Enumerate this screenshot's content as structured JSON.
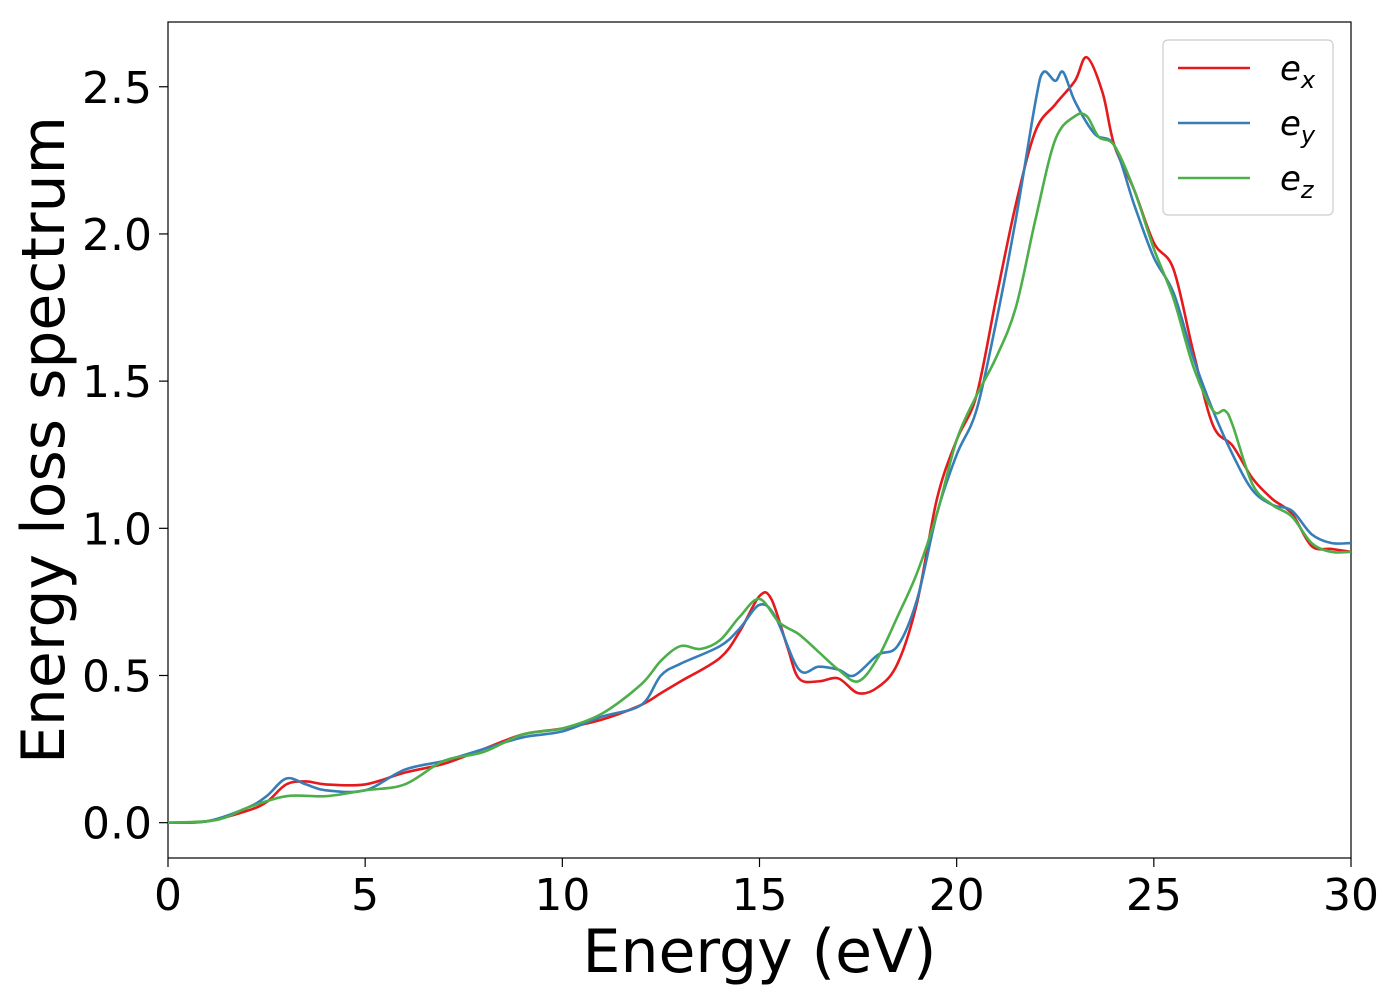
{
  "chart_data": {
    "type": "line",
    "title": "",
    "xlabel": "Energy (eV)",
    "ylabel": "Energy loss spectrum",
    "xlim": [
      0,
      30
    ],
    "ylim": [
      -0.12,
      2.72
    ],
    "xticks": [
      0,
      5,
      10,
      15,
      20,
      25,
      30
    ],
    "xtick_labels": [
      "0",
      "5",
      "10",
      "15",
      "20",
      "25",
      "30"
    ],
    "yticks": [
      0.0,
      0.5,
      1.0,
      1.5,
      2.0,
      2.5
    ],
    "ytick_labels": [
      "0.0",
      "0.5",
      "1.0",
      "1.5",
      "2.0",
      "2.5"
    ],
    "grid": false,
    "legend_position": "top-right",
    "series": [
      {
        "name": "e_x",
        "base": "e",
        "sub": "x",
        "color": "#e41a1c",
        "points": [
          [
            0,
            0
          ],
          [
            1,
            0.005
          ],
          [
            2,
            0.04
          ],
          [
            2.5,
            0.07
          ],
          [
            3,
            0.13
          ],
          [
            3.5,
            0.14
          ],
          [
            4,
            0.13
          ],
          [
            5,
            0.13
          ],
          [
            6,
            0.17
          ],
          [
            7,
            0.2
          ],
          [
            8,
            0.25
          ],
          [
            9,
            0.3
          ],
          [
            10,
            0.32
          ],
          [
            11,
            0.35
          ],
          [
            12,
            0.4
          ],
          [
            12.5,
            0.44
          ],
          [
            13,
            0.48
          ],
          [
            14,
            0.56
          ],
          [
            14.5,
            0.65
          ],
          [
            15,
            0.77
          ],
          [
            15.3,
            0.76
          ],
          [
            15.7,
            0.6
          ],
          [
            16,
            0.49
          ],
          [
            16.5,
            0.48
          ],
          [
            17,
            0.49
          ],
          [
            17.5,
            0.44
          ],
          [
            18,
            0.46
          ],
          [
            18.5,
            0.54
          ],
          [
            19,
            0.75
          ],
          [
            19.5,
            1.1
          ],
          [
            20,
            1.3
          ],
          [
            20.5,
            1.45
          ],
          [
            21,
            1.78
          ],
          [
            21.5,
            2.1
          ],
          [
            22,
            2.35
          ],
          [
            22.5,
            2.44
          ],
          [
            23,
            2.52
          ],
          [
            23.3,
            2.6
          ],
          [
            23.7,
            2.48
          ],
          [
            24,
            2.3
          ],
          [
            24.5,
            2.15
          ],
          [
            25,
            1.97
          ],
          [
            25.5,
            1.88
          ],
          [
            26,
            1.6
          ],
          [
            26.5,
            1.35
          ],
          [
            27,
            1.28
          ],
          [
            27.5,
            1.17
          ],
          [
            28,
            1.1
          ],
          [
            28.5,
            1.05
          ],
          [
            29,
            0.94
          ],
          [
            29.5,
            0.93
          ],
          [
            30,
            0.92
          ]
        ]
      },
      {
        "name": "e_y",
        "base": "e",
        "sub": "y",
        "color": "#377eb8",
        "points": [
          [
            0,
            0
          ],
          [
            1,
            0.005
          ],
          [
            2,
            0.05
          ],
          [
            2.5,
            0.09
          ],
          [
            3,
            0.15
          ],
          [
            3.5,
            0.13
          ],
          [
            4,
            0.11
          ],
          [
            5,
            0.11
          ],
          [
            6,
            0.18
          ],
          [
            7,
            0.21
          ],
          [
            8,
            0.25
          ],
          [
            9,
            0.29
          ],
          [
            10,
            0.31
          ],
          [
            11,
            0.36
          ],
          [
            12,
            0.4
          ],
          [
            12.5,
            0.5
          ],
          [
            13,
            0.54
          ],
          [
            14,
            0.6
          ],
          [
            14.5,
            0.66
          ],
          [
            15,
            0.74
          ],
          [
            15.4,
            0.7
          ],
          [
            16,
            0.52
          ],
          [
            16.5,
            0.53
          ],
          [
            17,
            0.52
          ],
          [
            17.4,
            0.5
          ],
          [
            18,
            0.57
          ],
          [
            18.5,
            0.6
          ],
          [
            19,
            0.76
          ],
          [
            19.5,
            1.05
          ],
          [
            20,
            1.25
          ],
          [
            20.5,
            1.4
          ],
          [
            21,
            1.7
          ],
          [
            21.5,
            2.05
          ],
          [
            22,
            2.45
          ],
          [
            22.2,
            2.55
          ],
          [
            22.5,
            2.52
          ],
          [
            22.7,
            2.55
          ],
          [
            23,
            2.45
          ],
          [
            23.5,
            2.34
          ],
          [
            24,
            2.3
          ],
          [
            24.5,
            2.1
          ],
          [
            25,
            1.92
          ],
          [
            25.5,
            1.8
          ],
          [
            26,
            1.58
          ],
          [
            26.5,
            1.4
          ],
          [
            27,
            1.25
          ],
          [
            27.5,
            1.13
          ],
          [
            28,
            1.08
          ],
          [
            28.5,
            1.06
          ],
          [
            29,
            0.98
          ],
          [
            29.5,
            0.95
          ],
          [
            30,
            0.95
          ]
        ]
      },
      {
        "name": "e_z",
        "base": "e",
        "sub": "z",
        "color": "#4daf4a",
        "points": [
          [
            0,
            0
          ],
          [
            1,
            0.005
          ],
          [
            1.5,
            0.02
          ],
          [
            2,
            0.05
          ],
          [
            3,
            0.09
          ],
          [
            4,
            0.09
          ],
          [
            5,
            0.11
          ],
          [
            6,
            0.13
          ],
          [
            7,
            0.21
          ],
          [
            8,
            0.24
          ],
          [
            9,
            0.3
          ],
          [
            10,
            0.32
          ],
          [
            11,
            0.37
          ],
          [
            12,
            0.47
          ],
          [
            12.5,
            0.55
          ],
          [
            13,
            0.6
          ],
          [
            13.5,
            0.59
          ],
          [
            14,
            0.62
          ],
          [
            14.5,
            0.7
          ],
          [
            15,
            0.76
          ],
          [
            15.5,
            0.68
          ],
          [
            16,
            0.64
          ],
          [
            16.5,
            0.58
          ],
          [
            17,
            0.52
          ],
          [
            17.5,
            0.48
          ],
          [
            18,
            0.56
          ],
          [
            18.5,
            0.7
          ],
          [
            19,
            0.85
          ],
          [
            19.5,
            1.05
          ],
          [
            20,
            1.3
          ],
          [
            20.5,
            1.45
          ],
          [
            21,
            1.58
          ],
          [
            21.5,
            1.75
          ],
          [
            22,
            2.05
          ],
          [
            22.5,
            2.32
          ],
          [
            23,
            2.4
          ],
          [
            23.3,
            2.4
          ],
          [
            23.6,
            2.33
          ],
          [
            24,
            2.3
          ],
          [
            24.5,
            2.15
          ],
          [
            25,
            1.95
          ],
          [
            25.5,
            1.78
          ],
          [
            26,
            1.55
          ],
          [
            26.5,
            1.4
          ],
          [
            26.8,
            1.4
          ],
          [
            27,
            1.35
          ],
          [
            27.5,
            1.15
          ],
          [
            28,
            1.08
          ],
          [
            28.5,
            1.04
          ],
          [
            29,
            0.95
          ],
          [
            29.5,
            0.92
          ],
          [
            30,
            0.92
          ]
        ]
      }
    ]
  }
}
